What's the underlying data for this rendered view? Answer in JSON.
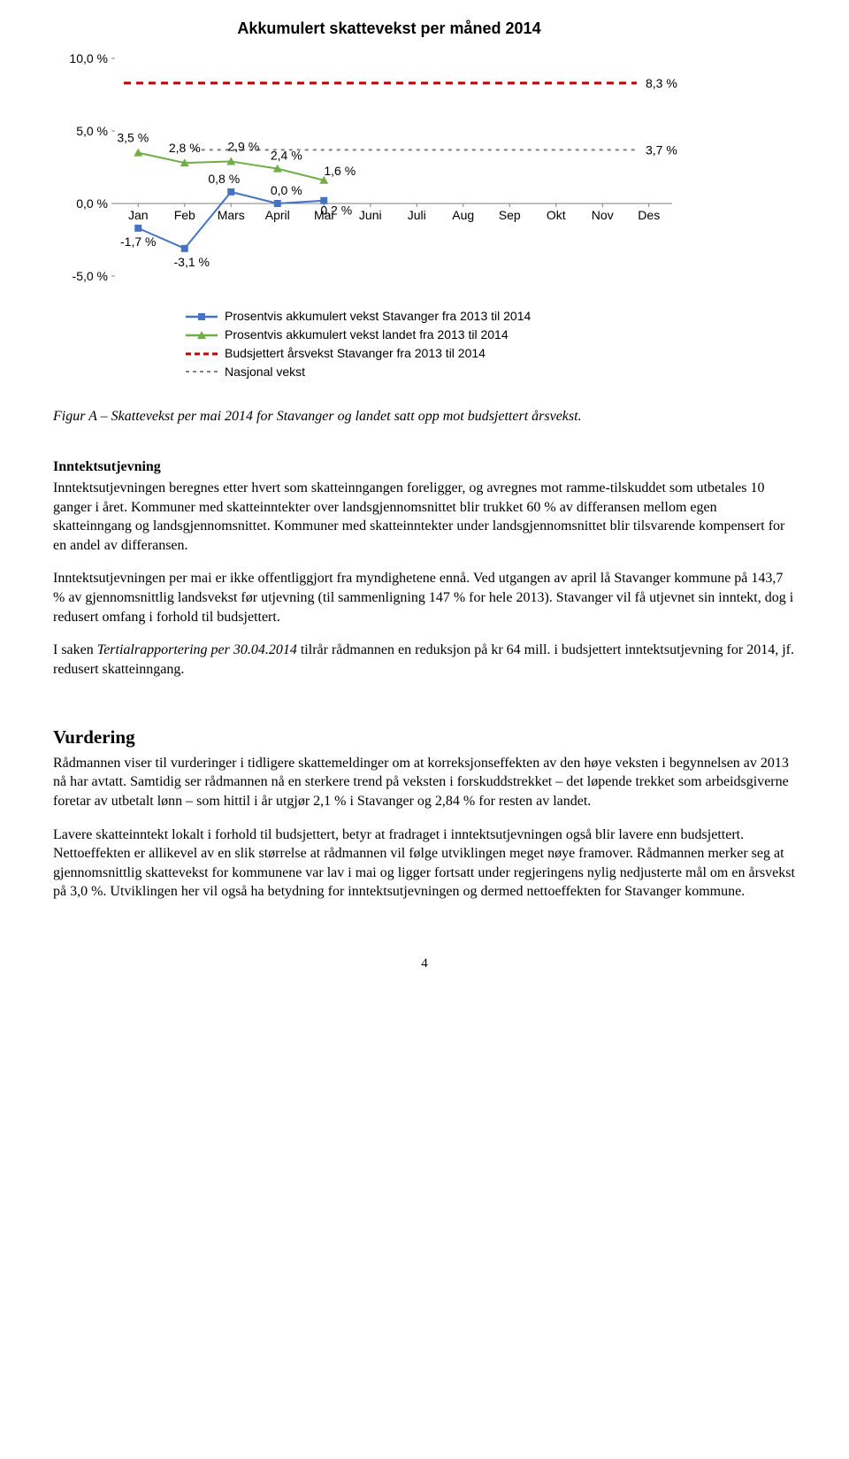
{
  "chart": {
    "type": "line-with-reference",
    "title": "Akkumulert skattevekst per måned 2014",
    "categories": [
      "Jan",
      "Feb",
      "Mars",
      "April",
      "Mai",
      "Juni",
      "Juli",
      "Aug",
      "Sep",
      "Okt",
      "Nov",
      "Des"
    ],
    "ylim": [
      -5,
      10
    ],
    "yticks": [
      -5,
      0,
      5,
      10
    ],
    "ytick_labels": [
      "-5,0 %",
      "0,0 %",
      "5,0 %",
      "10,0 %"
    ],
    "background_color": "#ffffff",
    "axis_color": "#808080",
    "stavanger_series": {
      "color": "#4472c4",
      "marker": "square",
      "marker_size": 8,
      "line_width": 2,
      "values": [
        -1.7,
        -3.1,
        0.8,
        0.0,
        0.2
      ],
      "labels": [
        "-1,7 %",
        "-3,1 %",
        "0,8 %",
        "0,0 %",
        "0,2 %"
      ]
    },
    "landet_series": {
      "color": "#70ad47",
      "marker": "triangle",
      "marker_size": 8,
      "line_width": 2,
      "values": [
        3.5,
        2.8,
        2.9,
        2.4,
        1.6
      ],
      "labels": [
        "3,5 %",
        "2,8 %",
        "2,9 %",
        "2,4 %",
        "1,6 %"
      ]
    },
    "budsjettert_ref": {
      "color": "#c00000",
      "value": 8.3,
      "label": "8,3 %",
      "dash": "8,6",
      "line_width": 3
    },
    "nasjonal_ref": {
      "color": "#808080",
      "value": 3.7,
      "label": "3,7 %",
      "dash": "4,5",
      "line_width": 2
    },
    "legend_items": [
      "Prosentvis akkumulert vekst Stavanger fra 2013 til 2014",
      "Prosentvis akkumulert vekst landet fra 2013 til 2014",
      "Budsjettert årsvekst Stavanger fra 2013 til 2014",
      "Nasjonal vekst"
    ]
  },
  "figure_caption": "Figur A – Skattevekst per mai 2014 for Stavanger og landet satt opp mot budsjettert årsvekst.",
  "inntekts_heading": "Inntektsutjevning",
  "inntekts_p1": "Inntektsutjevningen beregnes etter hvert som skatteinngangen foreligger, og avregnes mot ramme-tilskuddet som utbetales 10 ganger i året. Kommuner med skatteinntekter over landsgjennomsnittet blir trukket 60 % av differansen mellom egen skatteinngang og landsgjennomsnittet. Kommuner med skatteinntekter under landsgjennomsnittet blir tilsvarende kompensert for en andel av differansen.",
  "inntekts_p2": "Inntektsutjevningen per mai er ikke offentliggjort fra myndighetene ennå. Ved utgangen av april lå Stavanger kommune på 143,7 % av gjennomsnittlig landsvekst før utjevning (til sammenligning 147 % for hele 2013). Stavanger vil få utjevnet sin inntekt, dog i redusert omfang i forhold til budsjettert.",
  "inntekts_p3_a": "I saken ",
  "inntekts_p3_ital": "Tertialrapportering per 30.04.2014",
  "inntekts_p3_b": " tilrår rådmannen en reduksjon på kr 64 mill. i budsjettert inntektsutjevning for 2014, jf. redusert skatteinngang.",
  "vurdering_heading": "Vurdering",
  "vurdering_p1": "Rådmannen viser til vurderinger i tidligere skattemeldinger om at korreksjonseffekten av den høye veksten i begynnelsen av 2013 nå har avtatt. Samtidig ser rådmannen nå en sterkere trend på veksten i forskuddstrekket – det løpende trekket som arbeidsgiverne foretar av utbetalt lønn – som hittil i år utgjør 2,1 % i Stavanger og 2,84 % for resten av landet.",
  "vurdering_p2": "Lavere skatteinntekt lokalt i forhold til budsjettert, betyr at fradraget i inntektsutjevningen også blir lavere enn budsjettert. Nettoeffekten er allikevel av en slik størrelse at rådmannen vil følge utviklingen meget nøye framover. Rådmannen merker seg at gjennomsnittlig skattevekst for kommunene var lav i mai og ligger fortsatt under regjeringens nylig nedjusterte mål om en årsvekst på 3,0 %. Utviklingen her vil også ha betydning for inntektsutjevningen og dermed nettoeffekten for Stavanger kommune.",
  "page_number": "4"
}
